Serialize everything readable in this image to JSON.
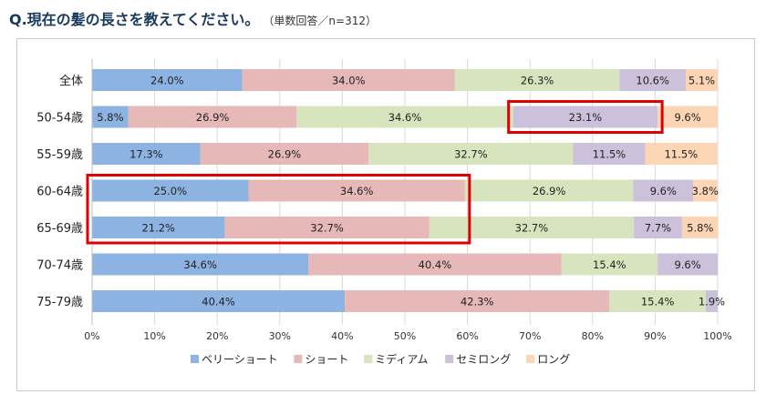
{
  "header": {
    "question": "Q.現在の髪の長さを教えてください。",
    "note": "（単数回答／n=312）"
  },
  "chart_data": {
    "type": "bar",
    "orientation": "horizontal",
    "stacked": true,
    "percent": true,
    "title": "Q.現在の髪の長さを教えてください。",
    "subtitle": "（単数回答／n=312）",
    "categories": [
      "全体",
      "50-54歳",
      "55-59歳",
      "60-64歳",
      "65-69歳",
      "70-74歳",
      "75-79歳"
    ],
    "series": [
      {
        "name": "ベリーショート",
        "color": "#8db3e2",
        "values": [
          24.0,
          5.8,
          17.3,
          25.0,
          21.2,
          34.6,
          40.4
        ],
        "labels": [
          "24.0%",
          "5.8%",
          "17.3%",
          "25.0%",
          "21.2%",
          "34.6%",
          "40.4%"
        ]
      },
      {
        "name": "ショート",
        "color": "#e6b9b8",
        "values": [
          34.0,
          26.9,
          26.9,
          34.6,
          32.7,
          40.4,
          42.3
        ],
        "labels": [
          "34.0%",
          "26.9%",
          "26.9%",
          "34.6%",
          "32.7%",
          "40.4%",
          "42.3%"
        ]
      },
      {
        "name": "ミディアム",
        "color": "#d7e4bd",
        "values": [
          26.3,
          34.6,
          32.7,
          26.9,
          32.7,
          15.4,
          15.4
        ],
        "labels": [
          "26.3%",
          "34.6%",
          "32.7%",
          "26.9%",
          "32.7%",
          "15.4%",
          "15.4%"
        ]
      },
      {
        "name": "セミロング",
        "color": "#ccc1da",
        "values": [
          10.6,
          23.1,
          11.5,
          9.6,
          7.7,
          9.6,
          1.9
        ],
        "labels": [
          "10.6%",
          "23.1%",
          "11.5%",
          "9.6%",
          "7.7%",
          "9.6%",
          "1.9%"
        ]
      },
      {
        "name": "ロング",
        "color": "#fcd5b5",
        "values": [
          5.1,
          9.6,
          11.5,
          3.8,
          5.8,
          0,
          0
        ],
        "labels": [
          "5.1%",
          "9.6%",
          "11.5%",
          "3.8%",
          "5.8%",
          "",
          ""
        ]
      }
    ],
    "xlim": [
      0,
      100
    ],
    "xticks": [
      "0%",
      "10%",
      "20%",
      "30%",
      "40%",
      "50%",
      "60%",
      "70%",
      "80%",
      "90%",
      "100%"
    ],
    "grid": true,
    "legend_position": "bottom",
    "highlight_color": "#e00000",
    "highlights": [
      {
        "rows": [
          1,
          1
        ],
        "series_index": 3
      },
      {
        "rows": [
          3,
          4
        ],
        "series_index": [
          0,
          1
        ]
      }
    ]
  }
}
